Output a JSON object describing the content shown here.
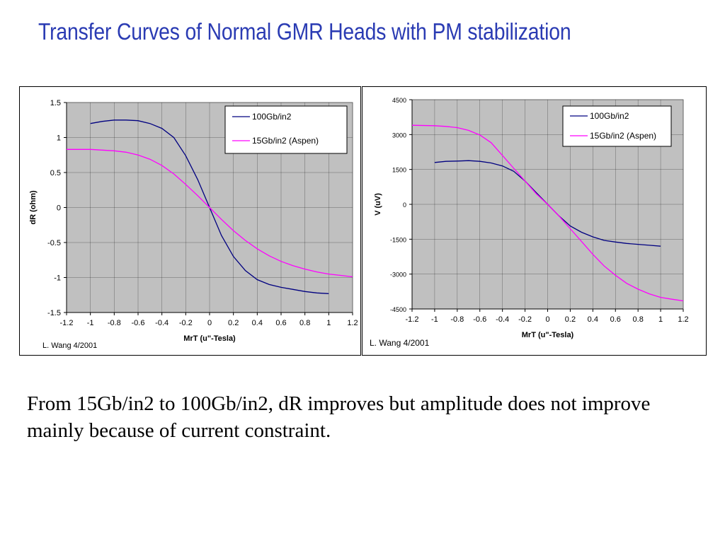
{
  "slide": {
    "title": "Transfer Curves of Normal GMR Heads with PM stabilization",
    "body": "From 15Gb/in2 to 100Gb/in2, dR improves but amplitude does not improve mainly because of current constraint."
  },
  "colors": {
    "title": "#2a3bb3",
    "plot_bg": "#c0c0c0",
    "series_100": "#000080",
    "series_15": "#ff00ff"
  },
  "chart_data": [
    {
      "type": "line",
      "title": "",
      "xlabel": "MrT (u\"-Tesla)",
      "ylabel": "dR (ohm)",
      "credit": "L. Wang 4/2001",
      "xlim": [
        -1.2,
        1.2
      ],
      "ylim": [
        -1.5,
        1.5
      ],
      "xticks": [
        "-1.2",
        "-1",
        "-0.8",
        "-0.6",
        "-0.4",
        "-0.2",
        "0",
        "0.2",
        "0.4",
        "0.6",
        "0.8",
        "1",
        "1.2"
      ],
      "yticks": [
        "1.5",
        "1",
        "0.5",
        "0",
        "-0.5",
        "-1",
        "-1.5"
      ],
      "grid": true,
      "legend_position": "top-right",
      "series": [
        {
          "name": "100Gb/in2",
          "color": "#000080",
          "x": [
            -1.0,
            -0.9,
            -0.8,
            -0.7,
            -0.6,
            -0.5,
            -0.4,
            -0.3,
            -0.2,
            -0.1,
            0,
            0.1,
            0.2,
            0.3,
            0.4,
            0.5,
            0.6,
            0.7,
            0.8,
            0.9,
            1.0
          ],
          "y": [
            1.2,
            1.23,
            1.25,
            1.25,
            1.24,
            1.2,
            1.13,
            1.0,
            0.74,
            0.4,
            0.0,
            -0.4,
            -0.7,
            -0.9,
            -1.03,
            -1.1,
            -1.14,
            -1.17,
            -1.2,
            -1.22,
            -1.23
          ]
        },
        {
          "name": "15Gb/in2 (Aspen)",
          "color": "#ff00ff",
          "x": [
            -1.2,
            -1.0,
            -0.9,
            -0.8,
            -0.7,
            -0.6,
            -0.5,
            -0.4,
            -0.3,
            -0.2,
            -0.1,
            0,
            0.1,
            0.2,
            0.3,
            0.4,
            0.5,
            0.6,
            0.7,
            0.8,
            0.9,
            1.0,
            1.1,
            1.2
          ],
          "y": [
            0.83,
            0.83,
            0.82,
            0.81,
            0.79,
            0.75,
            0.69,
            0.6,
            0.48,
            0.33,
            0.17,
            0.0,
            -0.17,
            -0.33,
            -0.47,
            -0.59,
            -0.69,
            -0.77,
            -0.83,
            -0.88,
            -0.92,
            -0.95,
            -0.97,
            -0.99
          ]
        }
      ]
    },
    {
      "type": "line",
      "title": "",
      "xlabel": "MrT (u\"-Tesla)",
      "ylabel": "V (uV)",
      "credit": "L. Wang 4/2001",
      "xlim": [
        -1.2,
        1.2
      ],
      "ylim": [
        -4500,
        4500
      ],
      "xticks": [
        "-1.2",
        "-1",
        "-0.8",
        "-0.6",
        "-0.4",
        "-0.2",
        "0",
        "0.2",
        "0.4",
        "0.6",
        "0.8",
        "1",
        "1.2"
      ],
      "yticks": [
        "4500",
        "3000",
        "1500",
        "0",
        "-1500",
        "-3000",
        "-4500"
      ],
      "grid": true,
      "legend_position": "top-right",
      "series": [
        {
          "name": "100Gb/in2",
          "color": "#000080",
          "x": [
            -1.0,
            -0.9,
            -0.8,
            -0.7,
            -0.6,
            -0.5,
            -0.4,
            -0.3,
            -0.2,
            -0.1,
            0,
            0.1,
            0.2,
            0.3,
            0.4,
            0.5,
            0.6,
            0.7,
            0.8,
            0.9,
            1.0
          ],
          "y": [
            1800,
            1850,
            1860,
            1880,
            1850,
            1780,
            1650,
            1420,
            1000,
            500,
            0,
            -500,
            -930,
            -1200,
            -1400,
            -1550,
            -1620,
            -1680,
            -1720,
            -1760,
            -1800
          ]
        },
        {
          "name": "15Gb/in2 (Aspen)",
          "color": "#ff00ff",
          "x": [
            -1.2,
            -1.0,
            -0.9,
            -0.8,
            -0.7,
            -0.6,
            -0.5,
            -0.4,
            -0.3,
            -0.2,
            -0.1,
            0,
            0.1,
            0.2,
            0.3,
            0.4,
            0.5,
            0.6,
            0.7,
            0.8,
            0.9,
            1.0,
            1.1,
            1.2
          ],
          "y": [
            3400,
            3380,
            3350,
            3300,
            3180,
            2980,
            2650,
            2100,
            1550,
            1000,
            450,
            0,
            -500,
            -1050,
            -1600,
            -2150,
            -2650,
            -3050,
            -3400,
            -3650,
            -3850,
            -4000,
            -4080,
            -4150
          ]
        }
      ]
    }
  ]
}
